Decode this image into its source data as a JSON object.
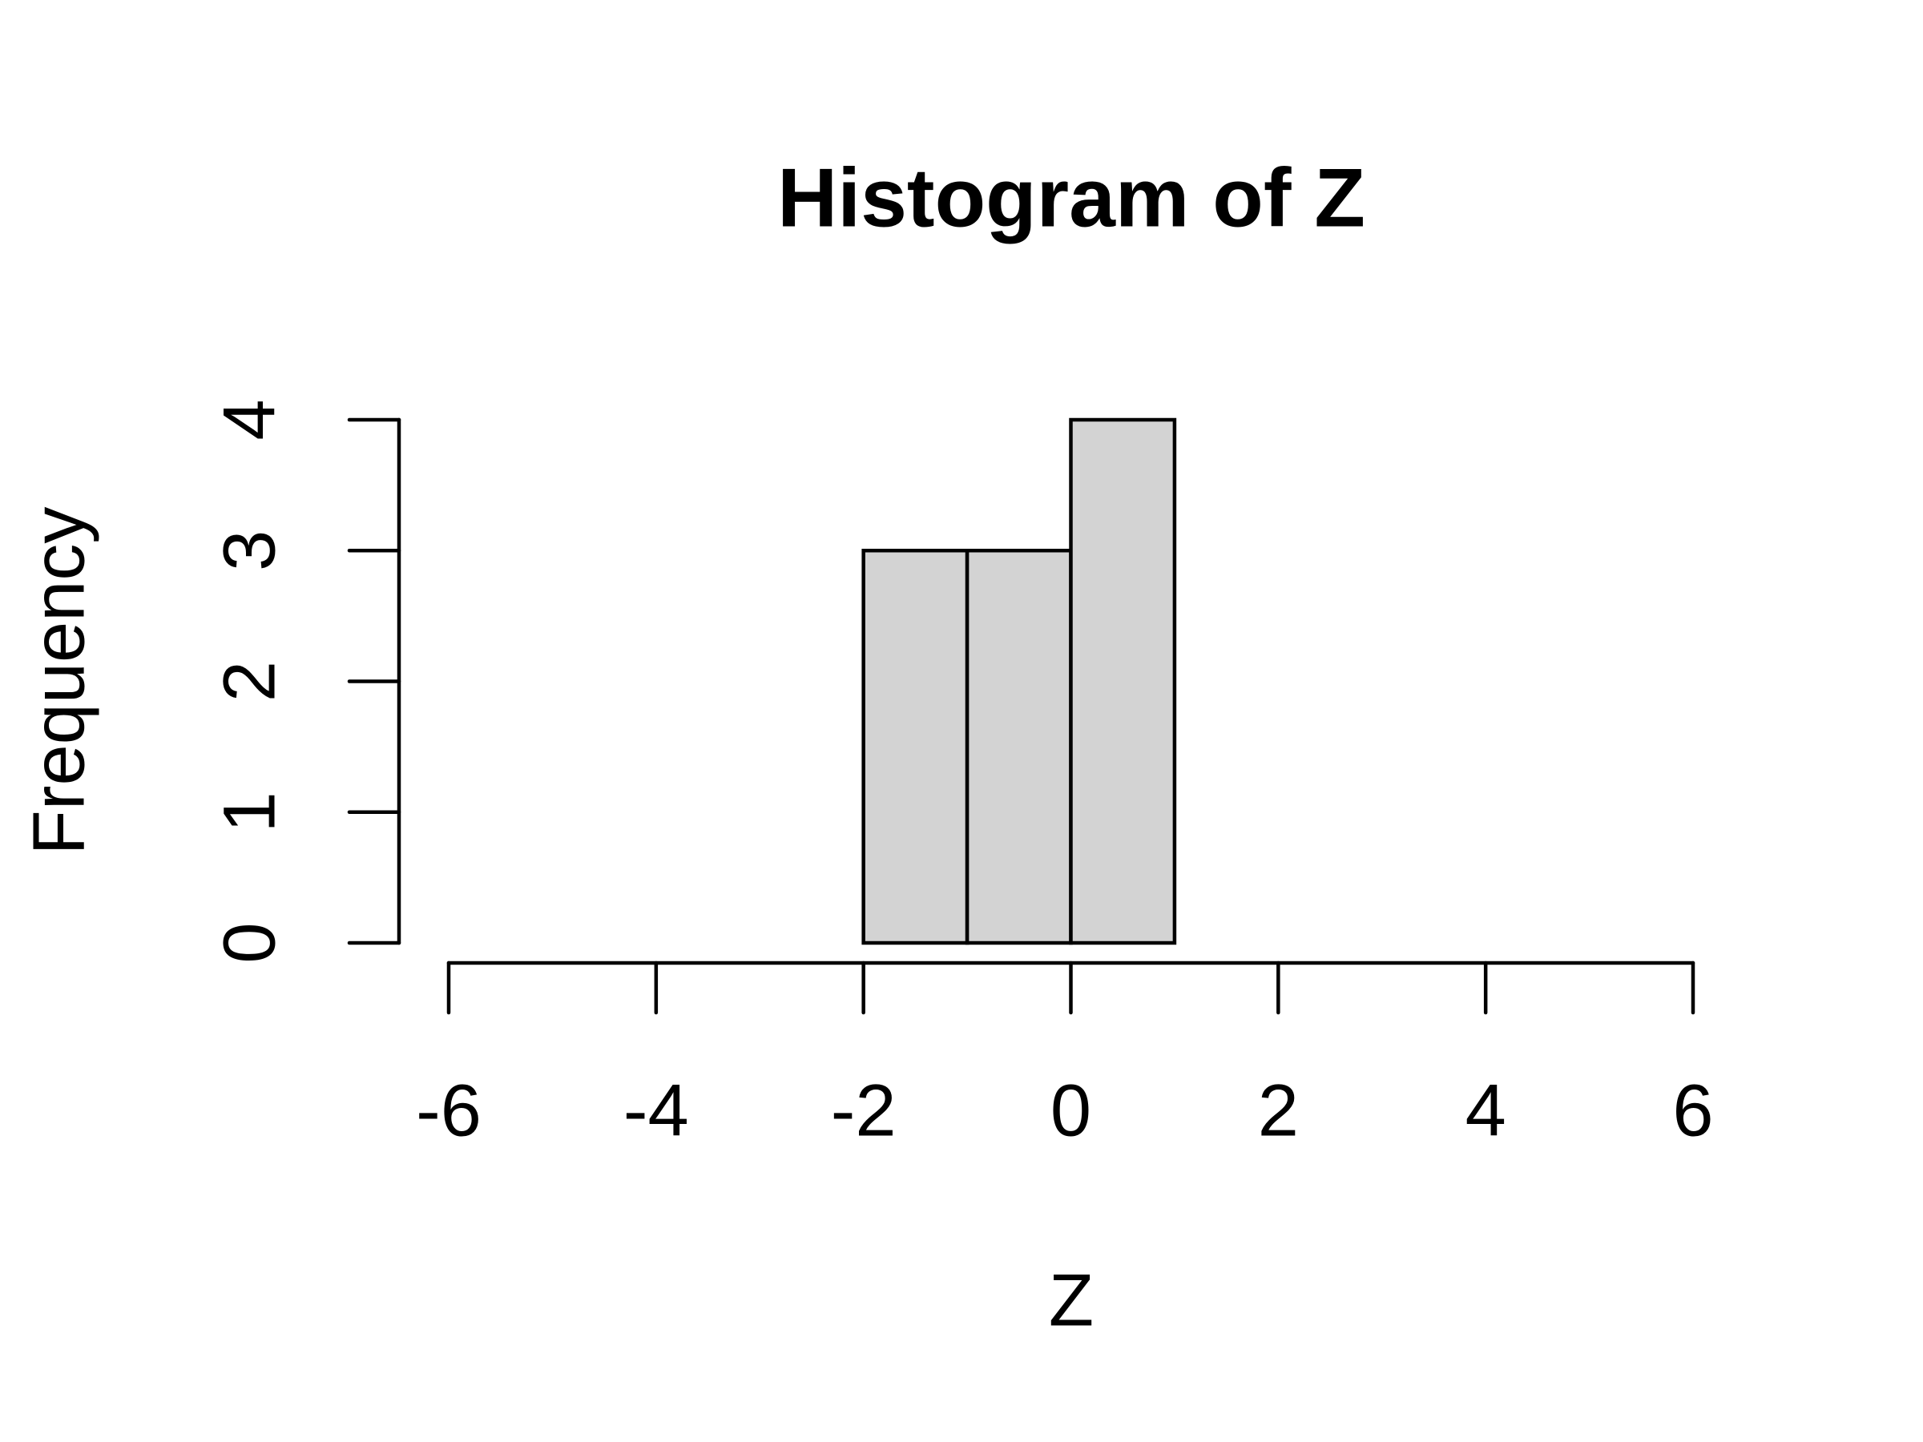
{
  "chart_data": {
    "type": "histogram",
    "title": "Histogram of Z",
    "x_label": "Z",
    "y_label": "Frequency",
    "bins": [
      -6,
      -5,
      -4,
      -3,
      -2,
      -1,
      0,
      1,
      2,
      3,
      4,
      5,
      6
    ],
    "values": [
      0,
      0,
      0,
      0,
      3,
      3,
      4,
      0,
      0,
      0,
      0,
      0
    ],
    "color": "#d3d3d3",
    "xlim": [
      -6,
      6
    ],
    "xticks": [
      -6,
      -4,
      -2,
      0,
      2,
      4,
      6
    ],
    "ylim": [
      0,
      4
    ],
    "yticks": [
      0,
      1,
      2,
      3,
      4
    ],
    "grid": false
  }
}
